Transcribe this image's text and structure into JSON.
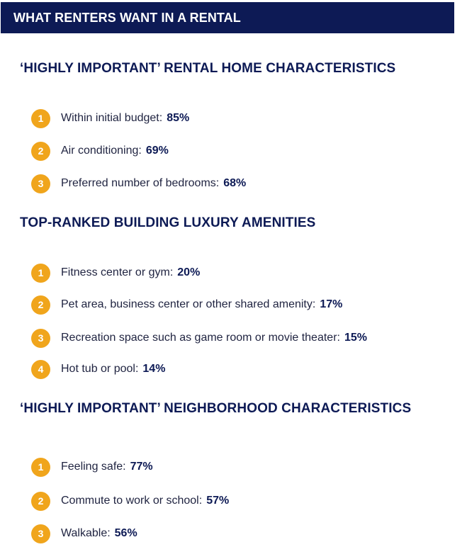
{
  "header": {
    "title": "WHAT RENTERS WANT IN A RENTAL"
  },
  "colors": {
    "banner": "#0d1a55",
    "heading": "#0d1a55",
    "badge": "#f0a51c"
  },
  "sections": [
    {
      "heading": "‘HIGHLY IMPORTANT’ RENTAL HOME CHARACTERISTICS",
      "items": [
        {
          "rank": "1",
          "label": "Within initial budget:",
          "value": "85%"
        },
        {
          "rank": "2",
          "label": "Air conditioning:",
          "value": "69%"
        },
        {
          "rank": "3",
          "label": "Preferred number of bedrooms:",
          "value": "68%"
        }
      ]
    },
    {
      "heading": "TOP-RANKED BUILDING LUXURY AMENITIES",
      "items": [
        {
          "rank": "1",
          "label": "Fitness center or gym:",
          "value": "20%"
        },
        {
          "rank": "2",
          "label": "Pet area, business center or other shared amenity:",
          "value": "17%"
        },
        {
          "rank": "3",
          "label": "Recreation space such as game room or movie theater:",
          "value": "15%"
        },
        {
          "rank": "4",
          "label": "Hot tub or pool:",
          "value": "14%"
        }
      ]
    },
    {
      "heading": "‘HIGHLY IMPORTANT’ NEIGHBORHOOD CHARACTERISTICS",
      "items": [
        {
          "rank": "1",
          "label": "Feeling safe:",
          "value": "77%"
        },
        {
          "rank": "2",
          "label": "Commute to work or school:",
          "value": "57%"
        },
        {
          "rank": "3",
          "label": "Walkable:",
          "value": "56%"
        }
      ]
    }
  ]
}
